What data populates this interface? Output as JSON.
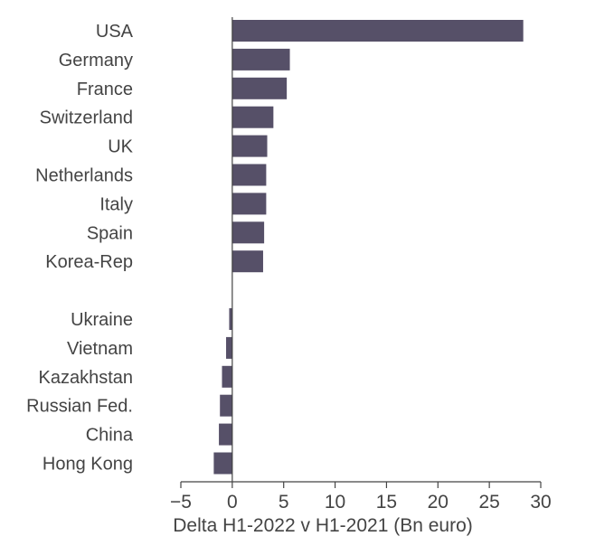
{
  "chart_data": {
    "type": "bar",
    "orientation": "horizontal",
    "categories": [
      "USA",
      "Germany",
      "France",
      "Switzerland",
      "UK",
      "Netherlands",
      "Italy",
      "Spain",
      "Korea-Rep",
      "",
      "Ukraine",
      "Vietnam",
      "Kazakhstan",
      "Russian Fed.",
      "China",
      "Hong Kong"
    ],
    "values": [
      28.3,
      5.6,
      5.3,
      4.0,
      3.4,
      3.3,
      3.3,
      3.1,
      3.0,
      null,
      -0.3,
      -0.6,
      -1.0,
      -1.2,
      -1.3,
      -1.8
    ],
    "title": "",
    "xlabel": "Delta H1-2022 v H1-2021 (Bn euro)",
    "ylabel": "",
    "xlim": [
      -5,
      30
    ],
    "xticks": [
      -5,
      0,
      5,
      10,
      15,
      20,
      25,
      30
    ],
    "xtick_labels": [
      "−5",
      "0",
      "5",
      "10",
      "15",
      "20",
      "25",
      "30"
    ],
    "grid": false,
    "legend": "none",
    "bar_color": "#565068",
    "text_color": "#444444",
    "axis_color": "#444444"
  }
}
